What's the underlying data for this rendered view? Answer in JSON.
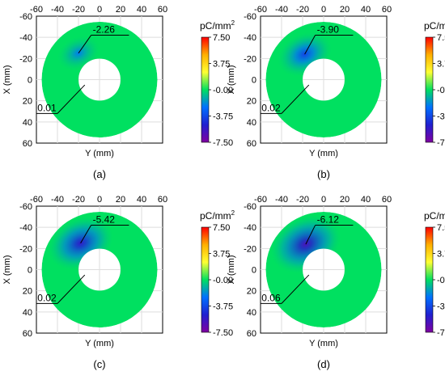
{
  "figure": {
    "colorbar": {
      "unit_label": "pC/mm",
      "unit_superscript": "2",
      "ticks": [
        "7.50",
        "3.75",
        "-0.00",
        "-3.75",
        "-7.50"
      ],
      "colors": [
        "#ff0000",
        "#ffb000",
        "#ffff33",
        "#00e060",
        "#0070ff",
        "#2020d0",
        "#8000a0"
      ]
    }
  },
  "chart_data": [
    {
      "type": "heatmap",
      "panel_label": "(a)",
      "xlabel": "Y (mm)",
      "ylabel": "X (mm)",
      "x_ticks": [
        -60,
        -40,
        -20,
        0,
        20,
        40,
        60
      ],
      "y_ticks": [
        -60,
        -40,
        -20,
        0,
        20,
        40,
        60
      ],
      "xlim": [
        -60,
        60
      ],
      "ylim": [
        -60,
        60
      ],
      "color_range": [
        -7.5,
        7.5
      ],
      "min_annotation": {
        "label": "-2.26",
        "value": -2.26,
        "position_mm": [
          -20,
          -25
        ]
      },
      "max_annotation": {
        "label": "0.01",
        "value": 0.01,
        "position_mm": [
          -14,
          5
        ]
      }
    },
    {
      "type": "heatmap",
      "panel_label": "(b)",
      "xlabel": "Y (mm)",
      "ylabel": "X (mm)",
      "x_ticks": [
        -60,
        -40,
        -20,
        0,
        20,
        40,
        60
      ],
      "y_ticks": [
        -60,
        -40,
        -20,
        0,
        20,
        40,
        60
      ],
      "xlim": [
        -60,
        60
      ],
      "ylim": [
        -60,
        60
      ],
      "color_range": [
        -7.5,
        7.5
      ],
      "min_annotation": {
        "label": "-3.90",
        "value": -3.9,
        "position_mm": [
          -18,
          -24
        ]
      },
      "max_annotation": {
        "label": "0.02",
        "value": 0.02,
        "position_mm": [
          -14,
          5
        ]
      }
    },
    {
      "type": "heatmap",
      "panel_label": "(c)",
      "xlabel": "Y (mm)",
      "ylabel": "X (mm)",
      "x_ticks": [
        -60,
        -40,
        -20,
        0,
        20,
        40,
        60
      ],
      "y_ticks": [
        -60,
        -40,
        -20,
        0,
        20,
        40,
        60
      ],
      "xlim": [
        -60,
        60
      ],
      "ylim": [
        -60,
        60
      ],
      "color_range": [
        -7.5,
        7.5
      ],
      "min_annotation": {
        "label": "-5.42",
        "value": -5.42,
        "position_mm": [
          -18,
          -25
        ]
      },
      "max_annotation": {
        "label": "0.02",
        "value": 0.02,
        "position_mm": [
          -14,
          5
        ]
      }
    },
    {
      "type": "heatmap",
      "panel_label": "(d)",
      "xlabel": "Y (mm)",
      "ylabel": "X (mm)",
      "x_ticks": [
        -60,
        -40,
        -20,
        0,
        20,
        40,
        60
      ],
      "y_ticks": [
        -60,
        -40,
        -20,
        0,
        20,
        40,
        60
      ],
      "xlim": [
        -60,
        60
      ],
      "ylim": [
        -60,
        60
      ],
      "color_range": [
        -7.5,
        7.5
      ],
      "min_annotation": {
        "label": "-6.12",
        "value": -6.12,
        "position_mm": [
          -17,
          -24
        ]
      },
      "max_annotation": {
        "label": "0.06",
        "value": 0.06,
        "position_mm": [
          -14,
          5
        ]
      }
    }
  ]
}
